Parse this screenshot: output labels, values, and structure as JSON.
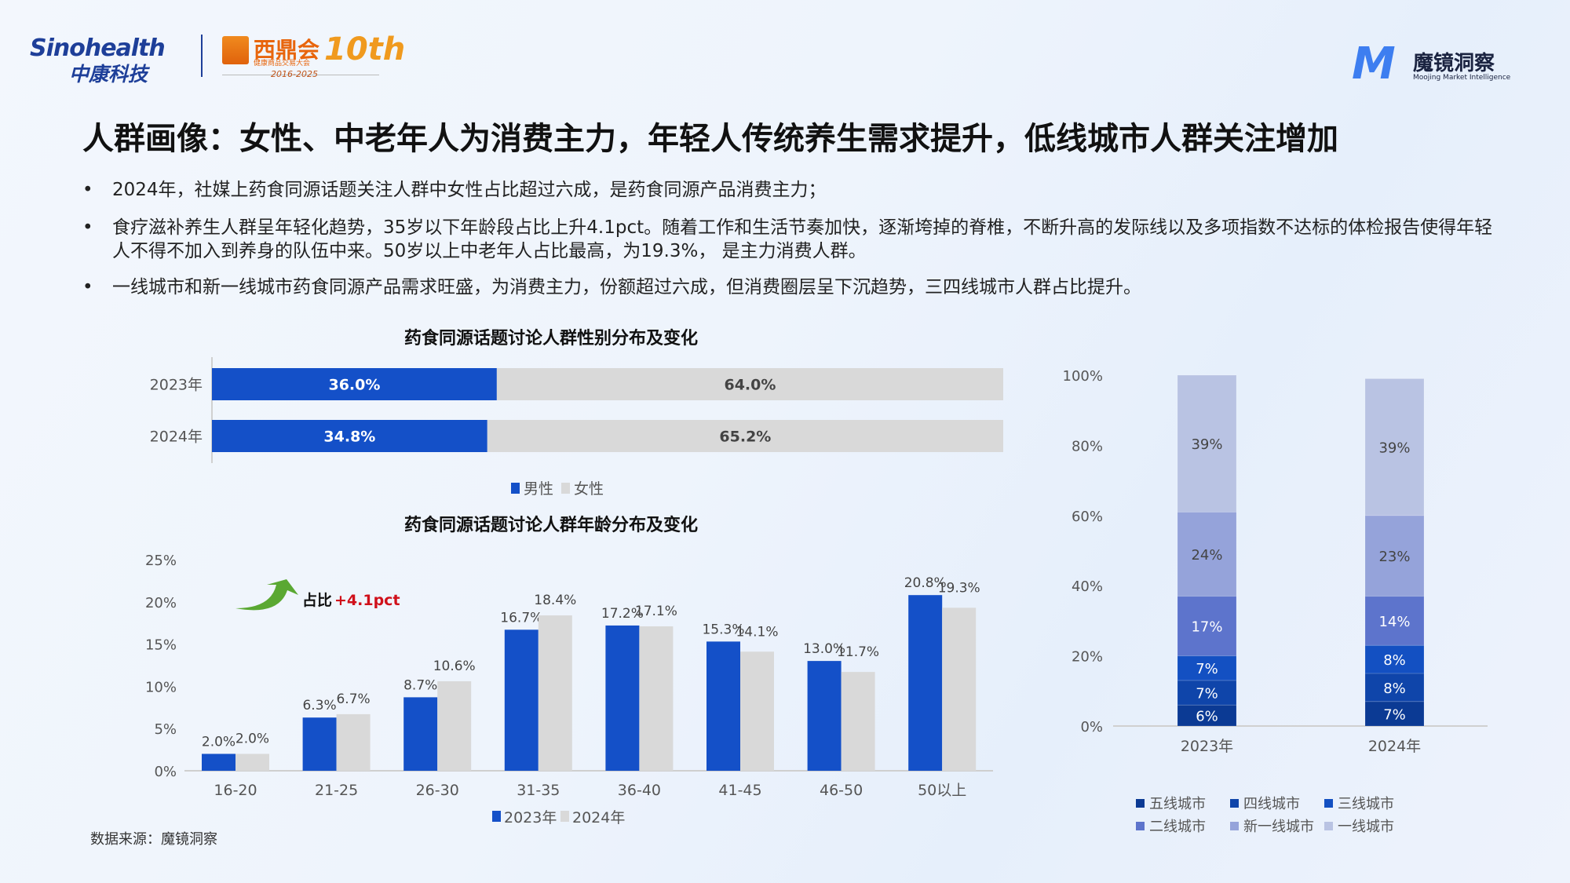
{
  "header": {
    "sinohealth_logo": {
      "en": "Sinohealth",
      "cn": "中康科技"
    },
    "xidinghui_logo": {
      "name": "西鼎会",
      "subtitle": "健康商品交易大会",
      "anniversary": "10th",
      "years": "2016-2025"
    },
    "moojing_logo": {
      "cn": "魔镜洞察",
      "en": "Moojing Market Intelligence"
    }
  },
  "title": "人群画像：女性、中老年人为消费主力，年轻人传统养生需求提升，低线城市人群关注增加",
  "bullets": [
    "2024年，社媒上药食同源话题关注人群中女性占比超过六成，是药食同源产品消费主力；",
    "食疗滋补养生人群呈年轻化趋势，35岁以下年龄段占比上升4.1pct。随着工作和生活节奏加快，逐渐垮掉的脊椎，不断升高的发际线以及多项指数不达标的体检报告使得年轻人不得不加入到养身的队伍中来。50岁以上中老年人占比最高，为19.3%， 是主力消费人群。",
    "一线城市和新一线城市药食同源产品需求旺盛，为消费主力，份额超过六成，但消费圈层呈下沉趋势，三四线城市人群占比提升。"
  ],
  "source": "数据来源：魔镜洞察",
  "colors": {
    "blue": "#1450c8",
    "gray": "#d9d9d9",
    "accent_red": "#d0101a",
    "arrow_green": "#5aa832"
  },
  "chart_data": [
    {
      "type": "bar",
      "orientation": "horizontal",
      "stacked": true,
      "title": "药食同源话题讨论人群性别分布及变化",
      "categories": [
        "2023年",
        "2024年"
      ],
      "series": [
        {
          "name": "男性",
          "values": [
            36.0,
            34.8
          ],
          "labels": [
            "36.0%",
            "34.8%"
          ],
          "color": "#1450c8"
        },
        {
          "name": "女性",
          "values": [
            64.0,
            65.2
          ],
          "labels": [
            "64.0%",
            "65.2%"
          ],
          "color": "#d9d9d9"
        }
      ],
      "xlim": [
        0,
        100
      ],
      "legend": "bottom"
    },
    {
      "type": "bar",
      "title": "药食同源话题讨论人群年龄分布及变化",
      "categories": [
        "16-20",
        "21-25",
        "26-30",
        "31-35",
        "36-40",
        "41-45",
        "46-50",
        "50以上"
      ],
      "series": [
        {
          "name": "2023年",
          "values": [
            2.0,
            6.3,
            8.7,
            16.7,
            17.2,
            15.3,
            13.0,
            20.8
          ],
          "color": "#1450c8"
        },
        {
          "name": "2024年",
          "values": [
            2.0,
            6.7,
            10.6,
            18.4,
            17.1,
            14.1,
            11.7,
            19.3
          ],
          "color": "#d9d9d9"
        }
      ],
      "ylim": [
        0,
        25
      ],
      "yticks": [
        "0%",
        "5%",
        "10%",
        "15%",
        "20%",
        "25%"
      ],
      "annotation": {
        "label": "占比",
        "value": "+4.1pct"
      },
      "legend": "bottom"
    },
    {
      "type": "bar",
      "stacked": true,
      "categories": [
        "2023年",
        "2024年"
      ],
      "series": [
        {
          "name": "五线城市",
          "values": [
            6,
            7
          ],
          "color": "#0b3a94"
        },
        {
          "name": "四线城市",
          "values": [
            7,
            8
          ],
          "color": "#0f45aa"
        },
        {
          "name": "三线城市",
          "values": [
            7,
            8
          ],
          "color": "#1350c2"
        },
        {
          "name": "二线城市",
          "values": [
            17,
            14
          ],
          "color": "#5d74cc"
        },
        {
          "name": "新一线城市",
          "values": [
            24,
            23
          ],
          "color": "#95a3da"
        },
        {
          "name": "一线城市",
          "values": [
            39,
            39
          ],
          "color": "#b9c3e3"
        }
      ],
      "ylim": [
        0,
        100
      ],
      "yticks": [
        "0%",
        "20%",
        "40%",
        "60%",
        "80%",
        "100%"
      ],
      "legend": "bottom"
    }
  ]
}
